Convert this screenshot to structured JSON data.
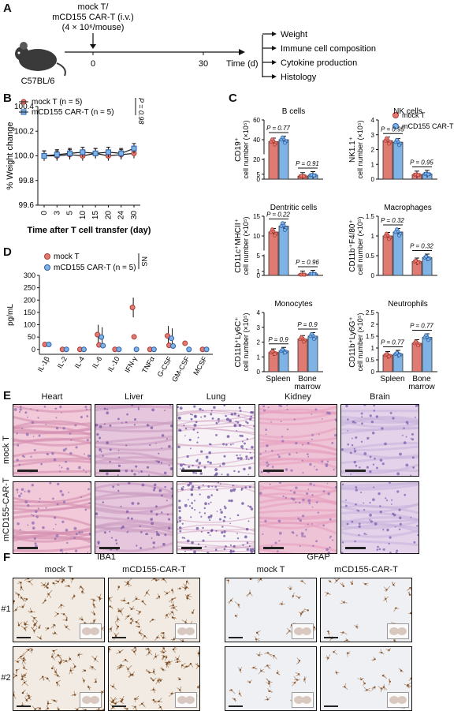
{
  "panels": {
    "A": "A",
    "B": "B",
    "C": "C",
    "D": "D",
    "E": "E",
    "F": "F"
  },
  "panelA": {
    "mouse": "C57BL/6",
    "treatment_line1": "mock T/",
    "treatment_line2": "mCD155 CAR-T (i.v.)",
    "dose": "(4 × 10⁶/mouse)",
    "t0": "0",
    "t30": "30",
    "time_label": "Time (d)",
    "outputs": [
      "Weight",
      "Immune cell composition",
      "Cytokine production",
      "Histology"
    ]
  },
  "panelB": {
    "legend": [
      "mock T (n = 5)",
      "mCD155 CAR-T (n = 5)"
    ],
    "pvalue": "P = 0.98",
    "xlabel": "Time after T cell transfer (day)",
    "ylabel": "% Weight change"
  },
  "panelC": {
    "legend": [
      "mock T",
      "mCD155 CAR-T"
    ],
    "xcats": [
      "Spleen",
      "Bone marrow"
    ]
  },
  "panelD": {
    "legend": [
      "mock T",
      "mCD155 CAR-T (n = 5)"
    ],
    "ns": "NS",
    "ylabel": "pg/mL"
  },
  "panelE": {
    "columns": [
      "Heart",
      "Liver",
      "Lung",
      "Kidney",
      "Brain"
    ],
    "rows": [
      "mock T",
      "mCD155-CAR-T"
    ]
  },
  "panelF": {
    "groups": [
      "IBA1",
      "GFAP"
    ],
    "subcols": [
      "mock T",
      "mCD155-CAR-T",
      "mock T",
      "mCD155-CAR-T"
    ],
    "rows": [
      "#1",
      "#2"
    ]
  },
  "colors": {
    "mock": "#e07b74",
    "car": "#7fb3e6",
    "mock_dark": "#b23a30",
    "car_dark": "#2a5fa8"
  },
  "chart_data": [
    {
      "id": "B",
      "type": "line",
      "x": [
        0,
        3,
        5,
        10,
        15,
        20,
        24,
        30
      ],
      "series": [
        {
          "name": "mock T (n = 5)",
          "values": [
            100.0,
            100.0,
            100.01,
            100.0,
            100.02,
            100.0,
            100.01,
            100.02
          ]
        },
        {
          "name": "mCD155 CAR-T (n = 5)",
          "values": [
            100.0,
            100.01,
            100.02,
            100.03,
            100.02,
            100.03,
            100.02,
            100.06
          ]
        }
      ],
      "xlabel": "Time after T cell transfer (day)",
      "ylabel": "% Weight change",
      "ylim": [
        99.6,
        100.4
      ],
      "yticks": [
        99.6,
        99.8,
        100.0,
        100.2,
        100.4
      ]
    },
    {
      "id": "C-B",
      "type": "bar",
      "title": "B cells",
      "ylabel": "CD19⁺ cell number (×10⁵)",
      "categories": [
        "Spleen",
        "Bone marrow"
      ],
      "series": [
        {
          "name": "mock T",
          "values": [
            38,
            3
          ]
        },
        {
          "name": "mCD155 CAR-T",
          "values": [
            40,
            4
          ]
        }
      ],
      "pvalues": [
        "P = 0.77",
        "P = 0.91"
      ],
      "yticks": [
        0,
        5,
        20,
        40,
        60
      ],
      "broken": true
    },
    {
      "id": "C-NK",
      "type": "bar",
      "title": "NK cells",
      "ylabel": "NK1.1⁺ cell number (×10⁵)",
      "categories": [
        "Spleen",
        "Bone marrow"
      ],
      "series": [
        {
          "name": "mock T",
          "values": [
            2.6,
            0.3
          ]
        },
        {
          "name": "mCD155 CAR-T",
          "values": [
            2.5,
            0.35
          ]
        }
      ],
      "pvalues": [
        "P = 0.95",
        "P = 0.95"
      ],
      "yticks": [
        0,
        1,
        2,
        3,
        4
      ]
    },
    {
      "id": "C-DC",
      "type": "bar",
      "title": "Dentritic cells",
      "ylabel": "CD11c⁺MHCII⁺ cell number (×10⁵)",
      "categories": [
        "Spleen",
        "Bone marrow"
      ],
      "series": [
        {
          "name": "mock T",
          "values": [
            11,
            0.2
          ]
        },
        {
          "name": "mCD155 CAR-T",
          "values": [
            12.5,
            0.4
          ]
        }
      ],
      "pvalues": [
        "P = 0.22",
        "P = 0.96"
      ],
      "yticks": [
        0,
        1,
        5,
        10,
        15
      ],
      "broken": true
    },
    {
      "id": "C-Mac",
      "type": "bar",
      "title": "Macrophages",
      "ylabel": "CD11b⁺F4/80⁺ cell number (×10⁵)",
      "categories": [
        "Spleen",
        "Bone marrow"
      ],
      "series": [
        {
          "name": "mock T",
          "values": [
            1.0,
            0.35
          ]
        },
        {
          "name": "mCD155 CAR-T",
          "values": [
            1.1,
            0.45
          ]
        }
      ],
      "pvalues": [
        "P = 0.32",
        "P = 0.32"
      ],
      "yticks": [
        0,
        0.5,
        1.0,
        1.5
      ]
    },
    {
      "id": "C-Mono",
      "type": "bar",
      "title": "Monocytes",
      "ylabel": "CD11b⁺Ly6C⁺ cell number (×10⁵)",
      "categories": [
        "Spleen",
        "Bone marrow"
      ],
      "series": [
        {
          "name": "mock T",
          "values": [
            1.3,
            2.2
          ]
        },
        {
          "name": "mCD155 CAR-T",
          "values": [
            1.4,
            2.4
          ]
        }
      ],
      "pvalues": [
        "P = 0.9",
        "P = 0.9"
      ],
      "yticks": [
        0,
        1,
        2,
        3,
        4
      ]
    },
    {
      "id": "C-Neu",
      "type": "bar",
      "title": "Neutrophils",
      "ylabel": "CD11b⁺Ly6G⁺ cell number (×10⁵)",
      "categories": [
        "Spleen",
        "Bone marrow"
      ],
      "series": [
        {
          "name": "mock T",
          "values": [
            0.7,
            1.2
          ]
        },
        {
          "name": "mCD155 CAR-T",
          "values": [
            0.75,
            1.45
          ]
        }
      ],
      "pvalues": [
        "P = 0.77",
        "P = 0.77"
      ],
      "yticks": [
        0,
        0.5,
        1.0,
        1.5,
        2.0,
        2.5
      ]
    },
    {
      "id": "D",
      "type": "scatter",
      "ylabel": "pg/mL",
      "categories": [
        "IL-1β",
        "IL-2",
        "IL-4",
        "IL-6",
        "IL-10",
        "IFN-γ",
        "TNFα",
        "G-CSF",
        "GM-CSF",
        "MCSF"
      ],
      "series": [
        {
          "name": "mock T",
          "values": [
            20,
            0,
            0,
            60,
            0,
            170,
            0,
            55,
            25,
            0
          ]
        },
        {
          "name": "mCD155 CAR-T (n = 5)",
          "values": [
            20,
            0,
            0,
            50,
            0,
            0,
            0,
            45,
            0,
            0
          ]
        }
      ],
      "yticks": [
        0,
        50,
        100,
        150,
        200,
        250,
        300
      ],
      "ylim": [
        -20,
        300
      ]
    }
  ]
}
